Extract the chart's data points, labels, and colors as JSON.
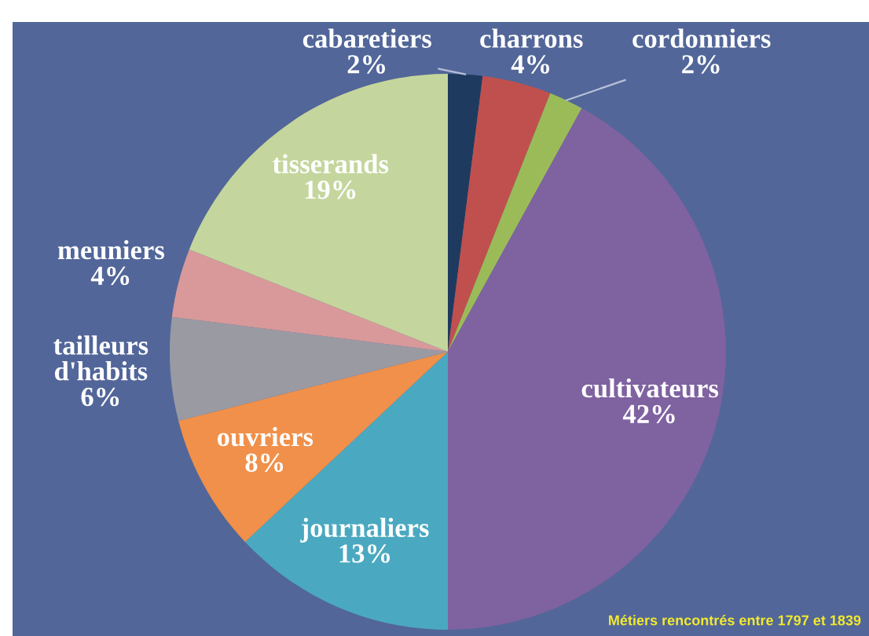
{
  "chart_data": {
    "type": "pie",
    "categories": [
      "cabaretiers",
      "charrons",
      "cordonniers",
      "cultivateurs",
      "journaliers",
      "ouvriers",
      "tailleurs d'habits",
      "meuniers",
      "tisserands"
    ],
    "values": [
      2,
      4,
      2,
      42,
      13,
      8,
      6,
      4,
      19
    ],
    "value_labels": [
      "2%",
      "4%",
      "2%",
      "42%",
      "13%",
      "8%",
      "6%",
      "4%",
      "19%"
    ],
    "colors": [
      "#1f3a5f",
      "#c0504d",
      "#9bbb59",
      "#7f62a0",
      "#4aa9c0",
      "#f0904a",
      "#9a9aa3",
      "#d9999a",
      "#c4d69d"
    ],
    "annotations": [
      "Métiers rencontrés entre 1797 et 1839"
    ]
  }
}
